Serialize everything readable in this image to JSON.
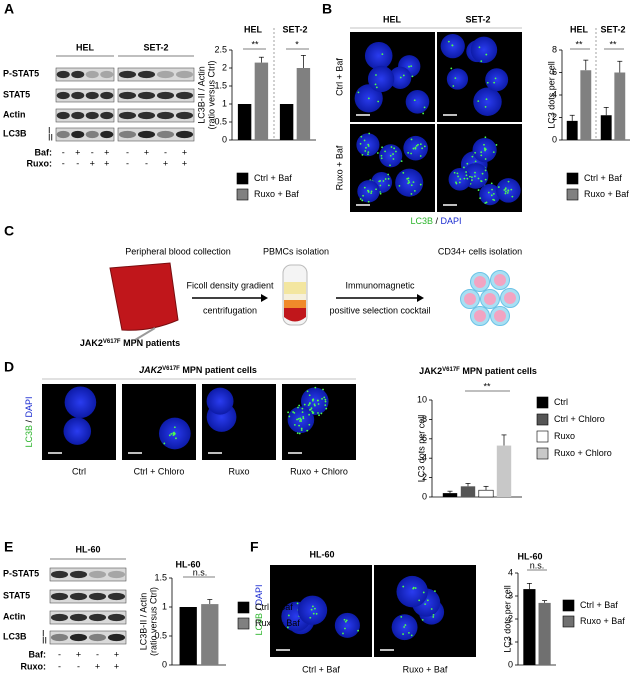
{
  "panel_labels": [
    "A",
    "B",
    "C",
    "D",
    "E",
    "F"
  ],
  "panel_a": {
    "cell_lines": [
      "HEL",
      "SET-2"
    ],
    "blot_rows": [
      "P-STAT5",
      "STAT5",
      "Actin",
      "LC3B"
    ],
    "lc3_forms": [
      "I",
      "II"
    ],
    "treatments": [
      {
        "name": "Baf:",
        "signs": [
          "-",
          "+",
          "-",
          "+",
          "-",
          "+",
          "-",
          "+"
        ]
      },
      {
        "name": "Ruxo:",
        "signs": [
          "-",
          "-",
          "+",
          "+",
          "-",
          "-",
          "+",
          "+"
        ]
      }
    ]
  },
  "panel_b": {
    "cell_lines": [
      "HEL",
      "SET-2"
    ],
    "rows": [
      "Ctrl + Baf",
      "Ruxo + Baf"
    ],
    "stain": {
      "green": "LC3B",
      "sep": " / ",
      "blue": "DAPI"
    }
  },
  "panel_c": {
    "steps": [
      "Peripheral blood collection",
      "PBMCs isolation",
      "CD34+ cells isolation"
    ],
    "arrow1": [
      "Ficoll density gradient",
      "centrifugation"
    ],
    "arrow2": [
      "Immunomagnetic",
      "positive selection cocktail"
    ],
    "patients": {
      "gene": "JAK2",
      "mutation": "V617F",
      "rest": " MPN patients"
    }
  },
  "panel_d": {
    "header": {
      "gene": "JAK2",
      "mutation": "V617F",
      "rest": " MPN patient cells"
    },
    "conditions": [
      "Ctrl",
      "Ctrl + Chloro",
      "Ruxo",
      "Ruxo + Chloro"
    ],
    "stain": {
      "green": "LC3B",
      "sep": " / ",
      "blue": "DAPI"
    }
  },
  "panel_e": {
    "title": "HL-60",
    "blot_rows": [
      "P-STAT5",
      "STAT5",
      "Actin",
      "LC3B"
    ],
    "lc3_forms": [
      "I",
      "II"
    ],
    "treatments": [
      {
        "name": "Baf:",
        "signs": [
          "-",
          "+",
          "-",
          "+"
        ]
      },
      {
        "name": "Ruxo:",
        "signs": [
          "-",
          "-",
          "+",
          "+"
        ]
      }
    ]
  },
  "panel_f": {
    "title": "HL-60",
    "conditions": [
      "Ctrl + Baf",
      "Ruxo + Baf"
    ],
    "stain": {
      "green": "LC3B",
      "sep": " / ",
      "blue": "DAPI"
    }
  },
  "chart_data": [
    {
      "type": "bar",
      "ylabel": [
        "LC3B-II / Actin",
        "(ratio versus Ctrl)"
      ],
      "categories": [
        "HEL",
        "SET-2"
      ],
      "series": [
        {
          "name": "Ctrl + Baf",
          "color": "#000000",
          "values": [
            1,
            1
          ]
        },
        {
          "name": "Ruxo + Baf",
          "color": "#808080",
          "values": [
            2.15,
            2.0
          ],
          "errors": [
            0.15,
            0.35
          ]
        }
      ],
      "ylim": [
        0,
        2.5
      ],
      "yticks": [
        0,
        0.5,
        1,
        1.5,
        2,
        2.5
      ],
      "annotations": [
        "**",
        "*"
      ]
    },
    {
      "type": "bar",
      "ylabel": [
        "LC3 dots per cell"
      ],
      "categories": [
        "HEL",
        "SET-2"
      ],
      "series": [
        {
          "name": "Ctrl + Baf",
          "color": "#000000",
          "values": [
            1.7,
            2.2
          ],
          "errors": [
            0.5,
            0.7
          ]
        },
        {
          "name": "Ruxo + Baf",
          "color": "#808080",
          "values": [
            6.2,
            6.0
          ],
          "errors": [
            0.9,
            1.0
          ]
        }
      ],
      "ylim": [
        0,
        8
      ],
      "yticks": [
        0,
        2,
        4,
        6,
        8
      ],
      "annotations": [
        "**",
        "**"
      ]
    },
    {
      "type": "bar",
      "title": {
        "gene": "JAK2",
        "mutation": "V617F",
        "rest": " MPN patient cells"
      },
      "ylabel": [
        "LC3 dots per cell"
      ],
      "categories": [
        null
      ],
      "series": [
        {
          "name": "Ctrl",
          "color": "#000000",
          "values": [
            0.4
          ],
          "errors": [
            0.2
          ]
        },
        {
          "name": "Ctrl + Chloro",
          "color": "#555555",
          "values": [
            1.1
          ],
          "errors": [
            0.3
          ]
        },
        {
          "name": "Ruxo",
          "color": "#ffffff",
          "values": [
            0.7
          ],
          "errors": [
            0.4
          ]
        },
        {
          "name": "Ruxo + Chloro",
          "color": "#c8c8c8",
          "values": [
            5.3
          ],
          "errors": [
            1.1
          ]
        }
      ],
      "ylim": [
        0,
        10
      ],
      "yticks": [
        0,
        2,
        4,
        6,
        8,
        10
      ],
      "annotations": [
        "**"
      ]
    },
    {
      "type": "bar",
      "title": "HL-60",
      "ylabel": [
        "LC3B-II / Actin",
        "(ratio versus Ctrl)"
      ],
      "categories": [
        null
      ],
      "series": [
        {
          "name": "Ctrl + Baf",
          "color": "#000000",
          "values": [
            1
          ]
        },
        {
          "name": "Ruxo + Baf",
          "color": "#808080",
          "values": [
            1.05
          ],
          "errors": [
            0.08
          ]
        }
      ],
      "ylim": [
        0,
        1.5
      ],
      "yticks": [
        0,
        0.5,
        1,
        1.5
      ],
      "annotations": [
        "n.s."
      ]
    },
    {
      "type": "bar",
      "title": "HL-60",
      "ylabel": [
        "LC3 dots per cell"
      ],
      "categories": [
        null
      ],
      "series": [
        {
          "name": "Ctrl + Baf",
          "color": "#000000",
          "values": [
            3.3
          ],
          "errors": [
            0.25
          ]
        },
        {
          "name": "Ruxo + Baf",
          "color": "#707070",
          "values": [
            2.7
          ],
          "errors": [
            0.1
          ]
        }
      ],
      "ylim": [
        0,
        4
      ],
      "yticks": [
        0,
        1,
        2,
        3,
        4
      ],
      "annotations": [
        "n.s."
      ]
    }
  ]
}
